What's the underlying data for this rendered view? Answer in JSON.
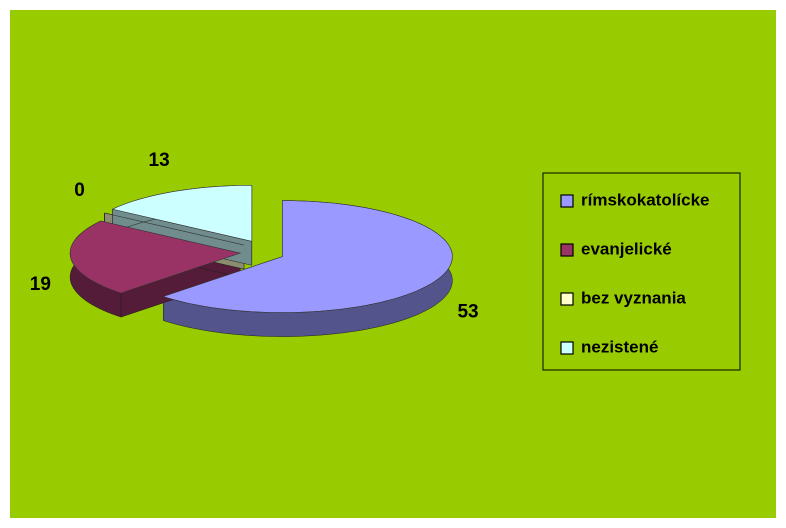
{
  "chart_data": {
    "type": "pie3d",
    "categories": [
      "rímskokatolícke",
      "evanjelické",
      "bez vyznania",
      "nezistené"
    ],
    "values": [
      53,
      19,
      0,
      13
    ],
    "colors": [
      "#9999ff",
      "#993366",
      "#ffffcc",
      "#ccffff"
    ],
    "legend": "right"
  }
}
